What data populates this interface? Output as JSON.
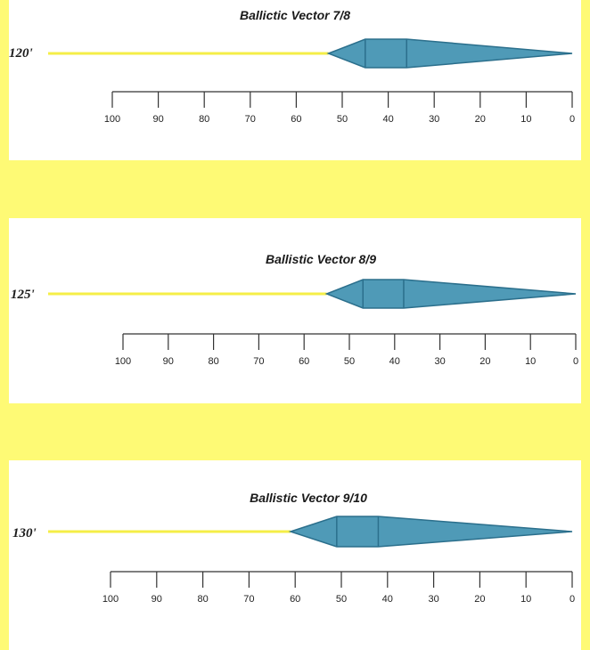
{
  "colors": {
    "background": "#fefa75",
    "panel": "#ffffff",
    "yellow_line": "#f5ee47",
    "shape_fill": "#4f9ab7",
    "shape_stroke": "#2b6f8c",
    "axis": "#333333"
  },
  "diagrams": [
    {
      "title": "Ballictic Vector 7/8",
      "distance_label": "120'",
      "axis_ticks": [
        "100",
        "90",
        "80",
        "70",
        "60",
        "50",
        "40",
        "30",
        "20",
        "10",
        "0"
      ],
      "shape_points": {
        "tail": 53,
        "box_start": 45,
        "box_mid": 36,
        "tip": 0
      }
    },
    {
      "title": "Ballistic Vector 8/9",
      "distance_label": "125'",
      "axis_ticks": [
        "100",
        "90",
        "80",
        "70",
        "60",
        "50",
        "40",
        "30",
        "20",
        "10",
        "0"
      ],
      "shape_points": {
        "tail": 55,
        "box_start": 47,
        "box_mid": 38,
        "tip": 0
      }
    },
    {
      "title": "Ballistic Vector 9/10",
      "distance_label": "130'",
      "axis_ticks": [
        "100",
        "90",
        "80",
        "70",
        "60",
        "50",
        "40",
        "30",
        "20",
        "10",
        "0"
      ],
      "shape_points": {
        "tail": 61,
        "box_start": 51,
        "box_mid": 42,
        "tip": 0
      }
    }
  ]
}
